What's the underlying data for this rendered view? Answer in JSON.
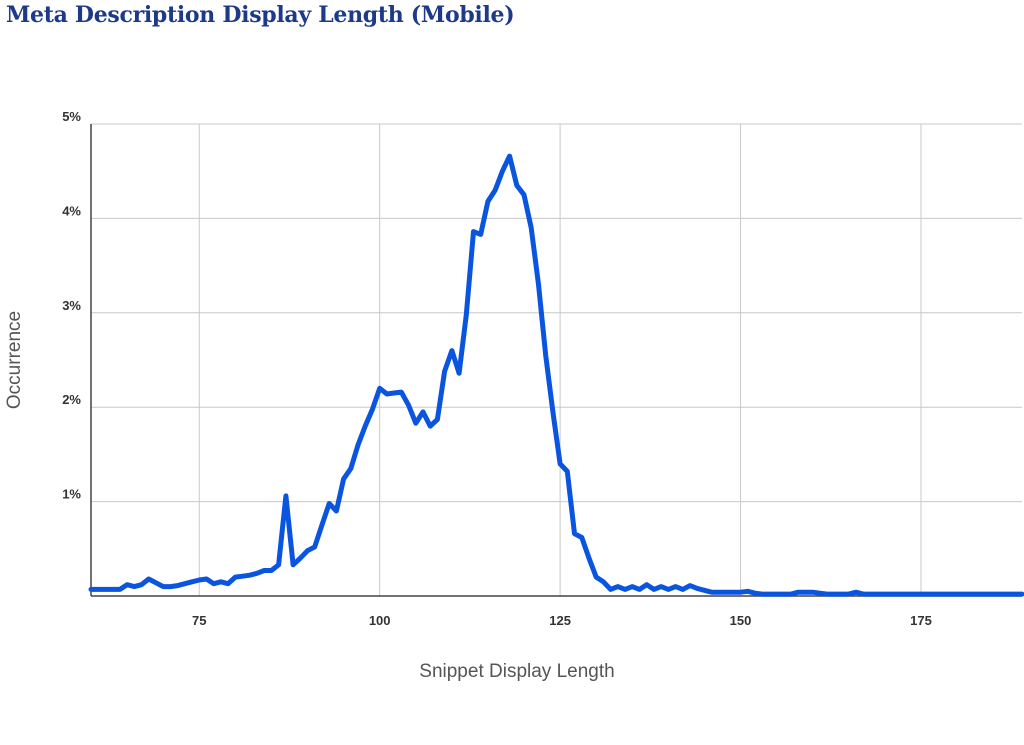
{
  "chart_data": {
    "type": "line",
    "title": "Meta Description Display Length (Mobile)",
    "xlabel": "Snippet Display Length",
    "ylabel": "Occurrence",
    "xlim": [
      60,
      189
    ],
    "ylim": [
      0,
      5
    ],
    "x_ticks": [
      75,
      100,
      125,
      150,
      175
    ],
    "y_ticks": [
      1,
      2,
      3,
      4,
      5
    ],
    "y_tick_labels": [
      "1%",
      "2%",
      "3%",
      "4%",
      "5%"
    ],
    "grid": true,
    "series": [
      {
        "color": "#0a55e0",
        "x": [
          60,
          61,
          62,
          63,
          64,
          65,
          66,
          67,
          68,
          69,
          70,
          71,
          72,
          73,
          74,
          75,
          76,
          77,
          78,
          79,
          80,
          81,
          82,
          83,
          84,
          85,
          86,
          87,
          88,
          89,
          90,
          91,
          92,
          93,
          94,
          95,
          96,
          97,
          98,
          99,
          100,
          101,
          102,
          103,
          104,
          105,
          106,
          107,
          108,
          109,
          110,
          111,
          112,
          113,
          114,
          115,
          116,
          117,
          118,
          119,
          120,
          121,
          122,
          123,
          124,
          125,
          126,
          127,
          128,
          129,
          130,
          131,
          132,
          133,
          134,
          135,
          136,
          137,
          138,
          139,
          140,
          141,
          142,
          143,
          144,
          145,
          146,
          147,
          148,
          149,
          150,
          151,
          152,
          153,
          154,
          155,
          156,
          157,
          158,
          159,
          160,
          161,
          162,
          163,
          164,
          165,
          166,
          167,
          168,
          169,
          170,
          175,
          180,
          185,
          189
        ],
        "values": [
          0.07,
          0.07,
          0.07,
          0.07,
          0.07,
          0.12,
          0.1,
          0.12,
          0.18,
          0.14,
          0.1,
          0.1,
          0.11,
          0.13,
          0.15,
          0.17,
          0.18,
          0.13,
          0.15,
          0.13,
          0.2,
          0.21,
          0.22,
          0.24,
          0.27,
          0.27,
          0.33,
          1.06,
          0.33,
          0.4,
          0.48,
          0.52,
          0.75,
          0.98,
          0.9,
          1.24,
          1.35,
          1.6,
          1.8,
          1.98,
          2.2,
          2.14,
          2.15,
          2.16,
          2.02,
          1.83,
          1.95,
          1.8,
          1.87,
          2.38,
          2.6,
          2.36,
          2.98,
          3.86,
          3.83,
          4.18,
          4.3,
          4.5,
          4.66,
          4.35,
          4.25,
          3.9,
          3.3,
          2.55,
          1.95,
          1.4,
          1.32,
          0.66,
          0.62,
          0.4,
          0.2,
          0.15,
          0.07,
          0.1,
          0.07,
          0.1,
          0.07,
          0.12,
          0.07,
          0.1,
          0.07,
          0.1,
          0.07,
          0.11,
          0.08,
          0.06,
          0.04,
          0.04,
          0.04,
          0.04,
          0.04,
          0.05,
          0.03,
          0.02,
          0.02,
          0.02,
          0.02,
          0.02,
          0.04,
          0.04,
          0.04,
          0.03,
          0.02,
          0.02,
          0.02,
          0.02,
          0.04,
          0.02,
          0.02,
          0.02,
          0.02,
          0.02,
          0.02,
          0.02,
          0.02
        ]
      }
    ]
  }
}
